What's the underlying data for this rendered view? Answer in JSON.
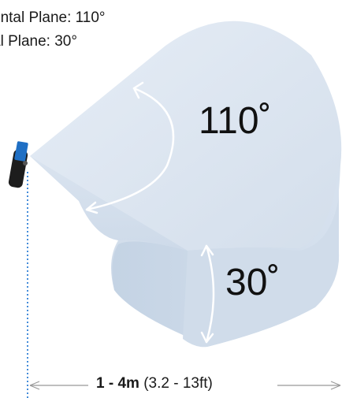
{
  "legend": {
    "horizontal": "ontal Plane: 110°",
    "vertical": "al Plane: 30°"
  },
  "angles": {
    "horizontal": "110˚",
    "vertical": "30˚"
  },
  "range": {
    "main": "1 - 4m",
    "secondary": " (3.2 - 13ft)"
  },
  "colors": {
    "volume_top": "#dce6f1",
    "volume_front": "#c9d6e6",
    "arrow": "#ffffff",
    "guide_line": "#2f7fd6",
    "sensor_body": "#1d1d1d",
    "sensor_accent": "#1f6fc4"
  },
  "icons": {
    "sensor": "sensor-device-icon"
  }
}
